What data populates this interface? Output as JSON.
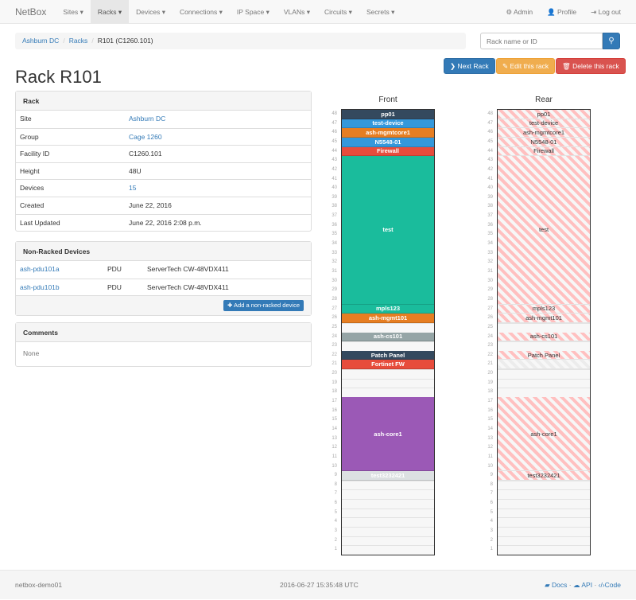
{
  "nav": {
    "brand": "NetBox",
    "items": [
      {
        "label": "Sites ▾"
      },
      {
        "label": "Racks ▾",
        "active": true
      },
      {
        "label": "Devices ▾"
      },
      {
        "label": "Connections ▾"
      },
      {
        "label": "IP Space ▾"
      },
      {
        "label": "VLANs ▾"
      },
      {
        "label": "Circuits ▾"
      },
      {
        "label": "Secrets ▾"
      }
    ],
    "right": [
      {
        "icon": "gear-icon",
        "label": "⚙ Admin"
      },
      {
        "icon": "user-icon",
        "label": "👤 Profile"
      },
      {
        "icon": "logout-icon",
        "label": "⇥ Log out"
      }
    ]
  },
  "breadcrumb": [
    "Ashburn DC",
    "Racks",
    "R101 (C1260.101)"
  ],
  "search": {
    "placeholder": "Rack name or ID",
    "icon": "search-icon"
  },
  "buttons": {
    "next": "❯ Next Rack",
    "edit": "✎ Edit this rack",
    "delete": "🗑 Delete this rack"
  },
  "colors": {
    "primary": "#337ab7",
    "warning": "#f0ad4e",
    "danger": "#d9534f"
  },
  "title": "Rack R101",
  "rack_panel": {
    "heading": "Rack",
    "rows": [
      {
        "k": "Site",
        "v": "Ashburn DC",
        "link": true
      },
      {
        "k": "Group",
        "v": "Cage 1260",
        "link": true
      },
      {
        "k": "Facility ID",
        "v": "C1260.101"
      },
      {
        "k": "Height",
        "v": "48U"
      },
      {
        "k": "Devices",
        "v": "15",
        "link": true
      },
      {
        "k": "Created",
        "v": "June 22, 2016"
      },
      {
        "k": "Last Updated",
        "v": "June 22, 2016 2:08 p.m."
      }
    ]
  },
  "nonracked": {
    "heading": "Non-Racked Devices",
    "rows": [
      {
        "name": "ash-pdu101a",
        "role": "PDU",
        "type": "ServerTech CW-48VDX411"
      },
      {
        "name": "ash-pdu101b",
        "role": "PDU",
        "type": "ServerTech CW-48VDX411"
      }
    ],
    "add": "✚ Add a non-racked device"
  },
  "comments": {
    "heading": "Comments",
    "body": "None"
  },
  "rack": {
    "units": 48,
    "front_title": "Front",
    "rear_title": "Rear",
    "front": [
      {
        "name": "pp01",
        "top": 48,
        "h": 1,
        "color": "#34495e"
      },
      {
        "name": "test-device",
        "top": 47,
        "h": 1,
        "color": "#3498db"
      },
      {
        "name": "ash-mgmtcore1",
        "top": 46,
        "h": 1,
        "color": "#e67e22"
      },
      {
        "name": "N5548-01",
        "top": 45,
        "h": 1,
        "color": "#3498db"
      },
      {
        "name": "Firewall",
        "top": 44,
        "h": 1,
        "color": "#e74c3c"
      },
      {
        "name": "test",
        "top": 43,
        "h": 16,
        "color": "#1abc9c"
      },
      {
        "name": "mpls123",
        "top": 27,
        "h": 1,
        "color": "#1abc9c"
      },
      {
        "name": "ash-mgmt101",
        "top": 26,
        "h": 1,
        "color": "#e67e22"
      },
      {
        "name": "ash-cs101",
        "top": 24,
        "h": 1,
        "color": "#95a5a6"
      },
      {
        "name": "Patch Panel",
        "top": 22,
        "h": 1,
        "color": "#34495e"
      },
      {
        "name": "Fortinet FW",
        "top": 21,
        "h": 1,
        "color": "#e74c3c"
      },
      {
        "name": "ash-core1",
        "top": 17,
        "h": 8,
        "color": "#9b59b6"
      },
      {
        "name": "test3232421",
        "top": 9,
        "h": 1,
        "color": "#dce0e2"
      }
    ],
    "rear": [
      {
        "name": "pp01",
        "top": 48,
        "h": 1
      },
      {
        "name": "test-device",
        "top": 47,
        "h": 1
      },
      {
        "name": "ash-mgmtcore1",
        "top": 46,
        "h": 1
      },
      {
        "name": "N5548-01",
        "top": 45,
        "h": 1
      },
      {
        "name": "Firewall",
        "top": 44,
        "h": 1
      },
      {
        "name": "test",
        "top": 43,
        "h": 16
      },
      {
        "name": "mpls123",
        "top": 27,
        "h": 1
      },
      {
        "name": "ash-mgmt101",
        "top": 26,
        "h": 1
      },
      {
        "name": "ash-cs101",
        "top": 24,
        "h": 1
      },
      {
        "name": "Patch Panel",
        "top": 22,
        "h": 1
      },
      {
        "name": "",
        "top": 21,
        "h": 1,
        "faint": true
      },
      {
        "name": "ash-core1",
        "top": 17,
        "h": 8
      },
      {
        "name": "test3232421",
        "top": 9,
        "h": 1
      }
    ]
  },
  "footer": {
    "host": "netbox-demo01",
    "time": "2016-06-27 15:35:48 UTC",
    "docs": "Docs",
    "api": "API",
    "code": "Code"
  }
}
